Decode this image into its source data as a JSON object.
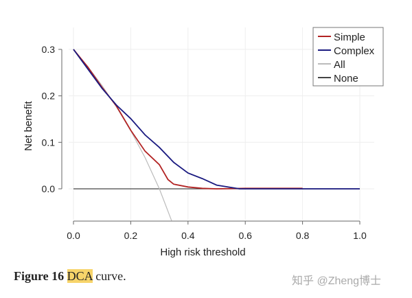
{
  "chart_data": {
    "type": "line",
    "title": "",
    "xlabel": "High risk threshold",
    "ylabel": "Net benefit",
    "xlim": [
      0,
      1.0
    ],
    "ylim": [
      -0.069,
      0.34
    ],
    "xticks": [
      "0.0",
      "0.2",
      "0.4",
      "0.6",
      "0.8",
      "1.0"
    ],
    "yticks": [
      "0.0",
      "0.1",
      "0.2",
      "0.3"
    ],
    "grid": true,
    "legend_position": "top-right",
    "series": [
      {
        "name": "Simple",
        "color": "#b22222",
        "x": [
          0,
          0.05,
          0.1,
          0.15,
          0.2,
          0.25,
          0.3,
          0.33,
          0.35,
          0.4,
          0.45,
          0.5,
          0.6,
          0.7,
          0.8
        ],
        "y": [
          0.3,
          0.262,
          0.218,
          0.178,
          0.126,
          0.081,
          0.052,
          0.02,
          0.01,
          0.004,
          0.001,
          0.0,
          0.001,
          0.001,
          0.001
        ]
      },
      {
        "name": "Complex",
        "color": "#1a1a80",
        "x": [
          0,
          0.05,
          0.1,
          0.15,
          0.2,
          0.25,
          0.3,
          0.35,
          0.4,
          0.45,
          0.5,
          0.55,
          0.58,
          0.7,
          0.8,
          1.0
        ],
        "y": [
          0.3,
          0.258,
          0.216,
          0.18,
          0.151,
          0.116,
          0.089,
          0.057,
          0.034,
          0.022,
          0.008,
          0.003,
          0.0,
          0.0,
          0.0,
          0.0
        ]
      },
      {
        "name": "All",
        "color": "#bbbbbb",
        "x": [
          0,
          0.05,
          0.1,
          0.15,
          0.2,
          0.25,
          0.3,
          0.343
        ],
        "y": [
          0.3,
          0.263,
          0.222,
          0.176,
          0.125,
          0.067,
          0.0,
          -0.069
        ]
      },
      {
        "name": "None",
        "color": "#444444",
        "x": [
          0,
          1.0
        ],
        "y": [
          0,
          0
        ]
      }
    ]
  },
  "caption": {
    "label": "Figure 16",
    "highlight": "DCA",
    "rest": "curve."
  },
  "watermark": "知乎 @Zheng博士"
}
